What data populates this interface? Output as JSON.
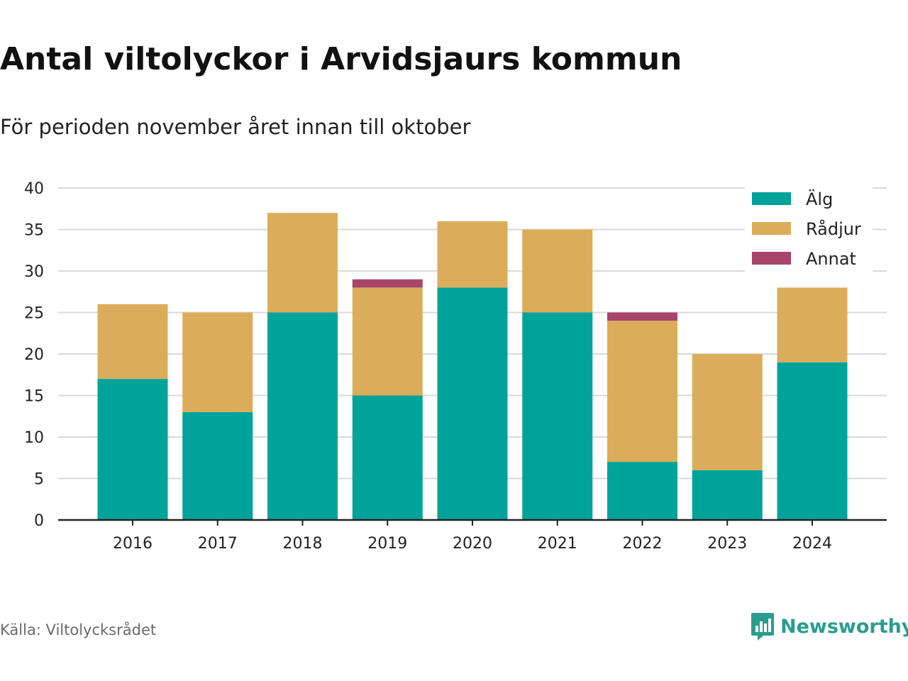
{
  "header": {
    "title": "Antal viltolyckor i Arvidsjaurs kommun",
    "subtitle": "För perioden november året innan till oktober"
  },
  "footer": {
    "source": "Källa: Viltolycksrådet",
    "brand": "Newsworthy",
    "brand_icon": "bar-chart-speech-bubble-icon"
  },
  "colors": {
    "Älg": "#00a39a",
    "Rådjur": "#dbad5a",
    "Annat": "#a8456b",
    "grid": "#d9d9d9",
    "axis": "#222222",
    "brand": "#2a9d8f"
  },
  "chart_data": {
    "type": "bar",
    "stacked": true,
    "categories": [
      "2016",
      "2017",
      "2018",
      "2019",
      "2020",
      "2021",
      "2022",
      "2023",
      "2024"
    ],
    "series": [
      {
        "name": "Älg",
        "values": [
          17,
          13,
          25,
          15,
          28,
          25,
          7,
          6,
          19
        ]
      },
      {
        "name": "Rådjur",
        "values": [
          9,
          12,
          12,
          13,
          8,
          10,
          17,
          14,
          9
        ]
      },
      {
        "name": "Annat",
        "values": [
          0,
          0,
          0,
          1,
          0,
          0,
          1,
          0,
          0
        ]
      }
    ],
    "ylim": [
      0,
      40
    ],
    "yticks": [
      0,
      5,
      10,
      15,
      20,
      25,
      30,
      35,
      40
    ],
    "grid": true,
    "legend_position": "top-right"
  }
}
